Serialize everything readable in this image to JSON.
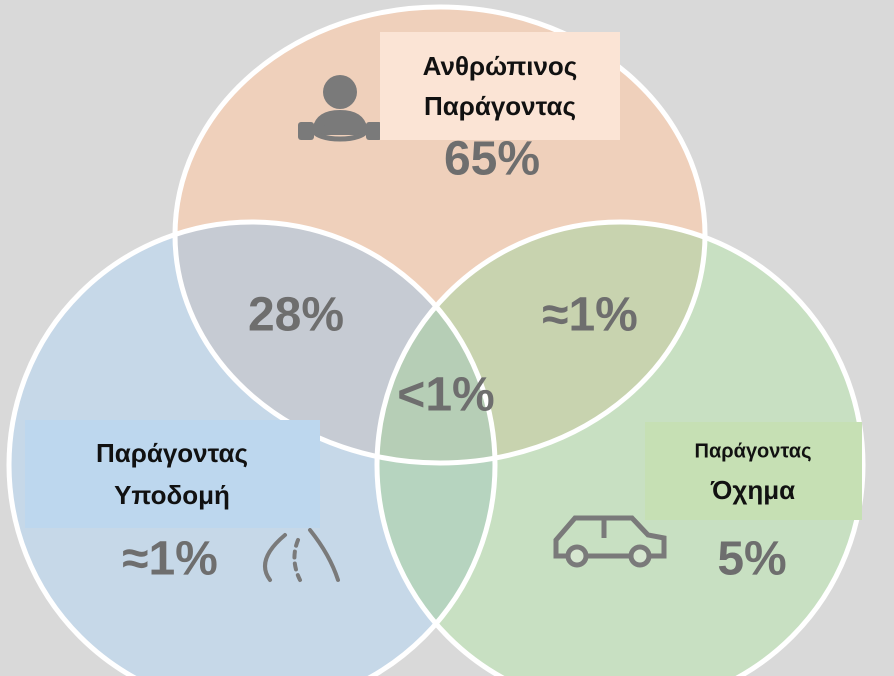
{
  "sets": [
    {
      "label": [
        "Ανθρώπινος",
        "Παράγοντας"
      ],
      "value": "65%"
    },
    {
      "label": [
        "Παράγοντας",
        "Υποδομή"
      ],
      "value": "≈1%"
    },
    {
      "label": [
        "Παράγοντας",
        "Όχημα"
      ],
      "value": "5%"
    }
  ],
  "intersections": {
    "human_infrastructure": "28%",
    "human_vehicle": "≈1%",
    "all": "<1%"
  }
}
